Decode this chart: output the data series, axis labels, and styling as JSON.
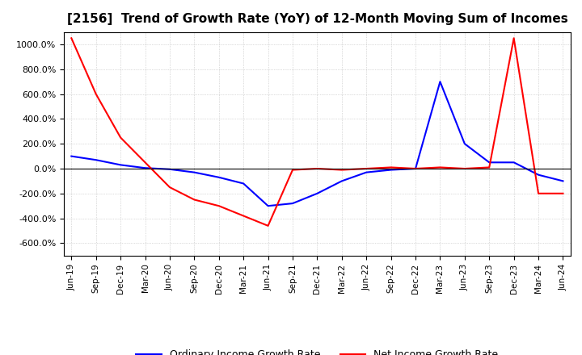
{
  "title": "[2156]  Trend of Growth Rate (YoY) of 12-Month Moving Sum of Incomes",
  "title_fontsize": 11,
  "ylim": [
    -700,
    1100
  ],
  "yticks": [
    -600,
    -400,
    -200,
    0,
    200,
    400,
    600,
    800,
    1000
  ],
  "background_color": "#ffffff",
  "grid_color": "#bbbbbb",
  "grid_linestyle": "dotted",
  "legend_labels": [
    "Ordinary Income Growth Rate",
    "Net Income Growth Rate"
  ],
  "legend_colors": [
    "#0000ff",
    "#ff0000"
  ],
  "x_labels": [
    "Jun-19",
    "Sep-19",
    "Dec-19",
    "Mar-20",
    "Jun-20",
    "Sep-20",
    "Dec-20",
    "Mar-21",
    "Jun-21",
    "Sep-21",
    "Dec-21",
    "Mar-22",
    "Jun-22",
    "Sep-22",
    "Dec-22",
    "Mar-23",
    "Jun-23",
    "Sep-23",
    "Dec-23",
    "Mar-24",
    "Jun-24"
  ],
  "ordinary_income_growth": [
    100,
    70,
    30,
    5,
    -5,
    -30,
    -70,
    -120,
    -300,
    -280,
    -200,
    -100,
    -30,
    -10,
    0,
    700,
    200,
    50,
    50,
    -50,
    -100
  ],
  "net_income_growth": [
    1050,
    600,
    250,
    50,
    -150,
    -250,
    -300,
    -380,
    -460,
    -10,
    0,
    -10,
    0,
    10,
    0,
    10,
    0,
    10,
    1050,
    -200,
    -200
  ]
}
